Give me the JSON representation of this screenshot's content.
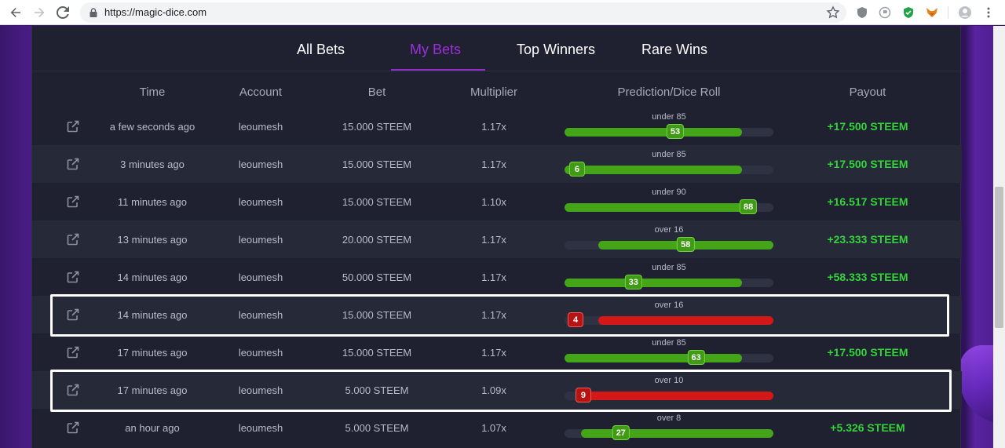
{
  "browser": {
    "url": "https://magic-dice.com",
    "back_icon": "back-arrow-icon",
    "forward_icon": "forward-arrow-icon",
    "reload_icon": "reload-icon",
    "lock_icon": "lock-icon",
    "bookmark_icon": "star-icon",
    "extensions": [
      "shield-extension-icon",
      "disabled-extension-icon",
      "green-shield-extension-icon",
      "fox-extension-icon",
      "profile-avatar-icon",
      "more-menu-icon"
    ]
  },
  "tabs": [
    {
      "label": "All Bets",
      "active": false
    },
    {
      "label": "My Bets",
      "active": true
    },
    {
      "label": "Top Winners",
      "active": false
    },
    {
      "label": "Rare Wins",
      "active": false
    }
  ],
  "columns": [
    "Time",
    "Account",
    "Bet",
    "Multiplier",
    "Prediction/Dice Roll",
    "Payout"
  ],
  "colors": {
    "win_bar": "#43a517",
    "lose_bar": "#d41818",
    "payout_green": "#35d43a",
    "active_tab": "#9b30d9"
  },
  "bets": [
    {
      "time": "a few seconds ago",
      "account": "leoumesh",
      "bet": "15.000 STEEM",
      "multiplier": "1.17x",
      "prediction": "under 85",
      "direction": "under",
      "target": 85,
      "roll": "53",
      "result": "win",
      "payout": "+17.500 STEEM",
      "highlighted": false
    },
    {
      "time": "3 minutes ago",
      "account": "leoumesh",
      "bet": "15.000 STEEM",
      "multiplier": "1.17x",
      "prediction": "under 85",
      "direction": "under",
      "target": 85,
      "roll": "6",
      "result": "win",
      "payout": "+17.500 STEEM",
      "highlighted": false
    },
    {
      "time": "11 minutes ago",
      "account": "leoumesh",
      "bet": "15.000 STEEM",
      "multiplier": "1.10x",
      "prediction": "under 90",
      "direction": "under",
      "target": 90,
      "roll": "88",
      "result": "win",
      "payout": "+16.517 STEEM",
      "highlighted": false
    },
    {
      "time": "13 minutes ago",
      "account": "leoumesh",
      "bet": "20.000 STEEM",
      "multiplier": "1.17x",
      "prediction": "over 16",
      "direction": "over",
      "target": 16,
      "roll": "58",
      "result": "win",
      "payout": "+23.333 STEEM",
      "highlighted": false
    },
    {
      "time": "14 minutes ago",
      "account": "leoumesh",
      "bet": "50.000 STEEM",
      "multiplier": "1.17x",
      "prediction": "under 85",
      "direction": "under",
      "target": 85,
      "roll": "33",
      "result": "win",
      "payout": "+58.333 STEEM",
      "highlighted": false
    },
    {
      "time": "14 minutes ago",
      "account": "leoumesh",
      "bet": "15.000 STEEM",
      "multiplier": "1.17x",
      "prediction": "over 16",
      "direction": "over",
      "target": 16,
      "roll": "4",
      "result": "lose",
      "payout": "",
      "highlighted": true
    },
    {
      "time": "17 minutes ago",
      "account": "leoumesh",
      "bet": "15.000 STEEM",
      "multiplier": "1.17x",
      "prediction": "under 85",
      "direction": "under",
      "target": 85,
      "roll": "63",
      "result": "win",
      "payout": "+17.500 STEEM",
      "highlighted": false
    },
    {
      "time": "17 minutes ago",
      "account": "leoumesh",
      "bet": "5.000 STEEM",
      "multiplier": "1.09x",
      "prediction": "over 10",
      "direction": "over",
      "target": 10,
      "roll": "9",
      "result": "lose",
      "payout": "",
      "highlighted": true
    },
    {
      "time": "an hour ago",
      "account": "leoumesh",
      "bet": "5.000 STEEM",
      "multiplier": "1.07x",
      "prediction": "over 8",
      "direction": "over",
      "target": 8,
      "roll": "27",
      "result": "win",
      "payout": "+5.326 STEEM",
      "highlighted": false
    }
  ]
}
